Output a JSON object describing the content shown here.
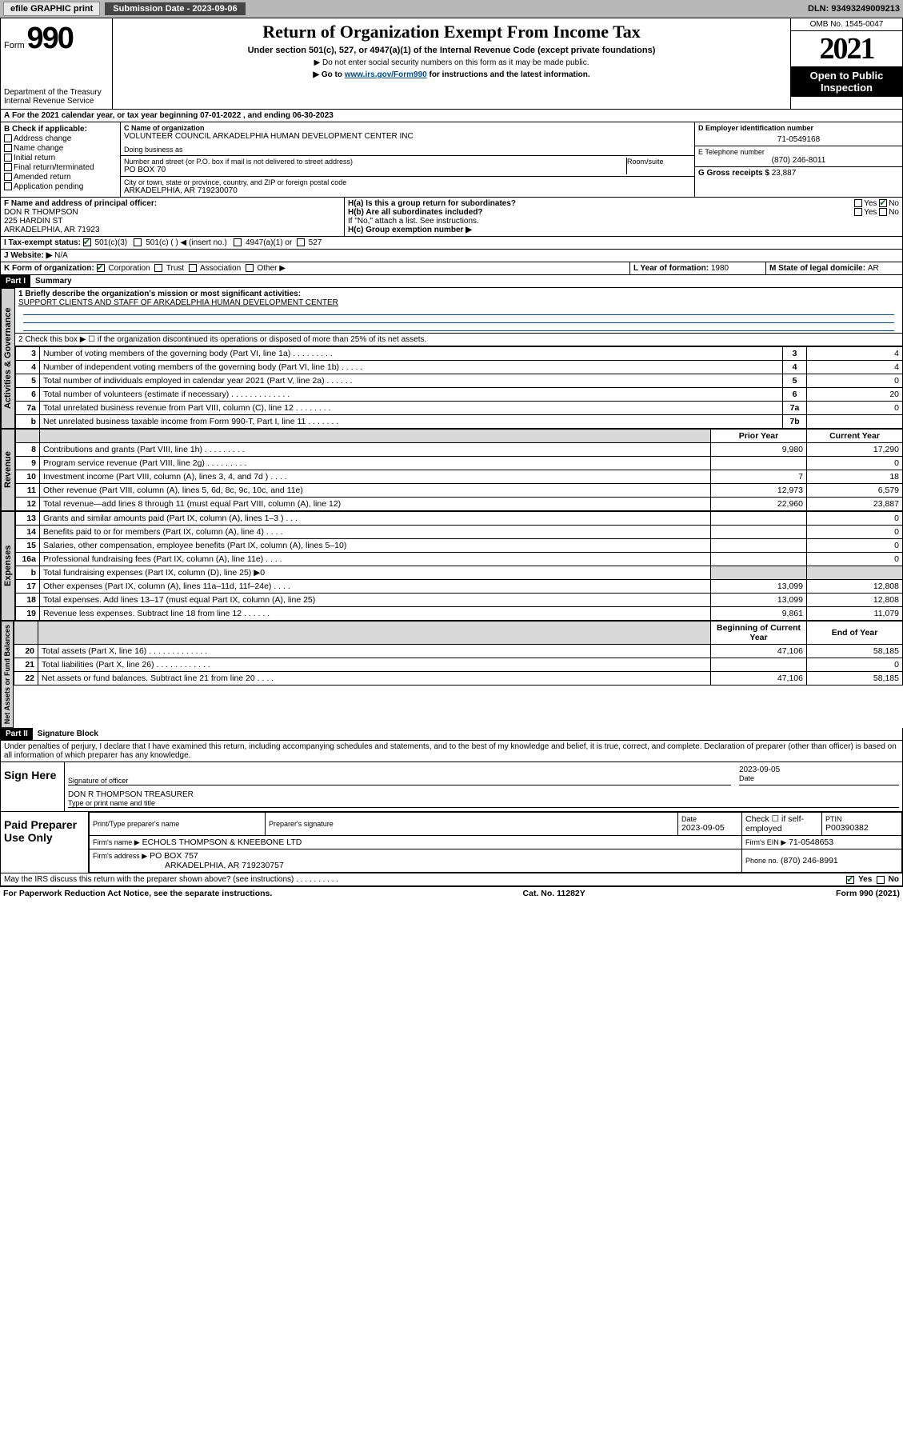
{
  "topbar": {
    "efile": "efile GRAPHIC print",
    "sub_label": "Submission Date - 2023-09-06",
    "dln": "DLN: 93493249009213"
  },
  "header": {
    "form_label": "Form",
    "form_no": "990",
    "title": "Return of Organization Exempt From Income Tax",
    "subtitle": "Under section 501(c), 527, or 4947(a)(1) of the Internal Revenue Code (except private foundations)",
    "note1": "Do not enter social security numbers on this form as it may be made public.",
    "note2_pre": "Go to ",
    "note2_link": "www.irs.gov/Form990",
    "note2_post": " for instructions and the latest information.",
    "dept": "Department of the Treasury\nInternal Revenue Service",
    "omb": "OMB No. 1545-0047",
    "year": "2021",
    "open": "Open to Public Inspection"
  },
  "period": {
    "text_a": "For the 2021 calendar year, or tax year beginning ",
    "begin": "07-01-2022",
    "text_b": " , and ending ",
    "end": "06-30-2023"
  },
  "checks": {
    "label": "B Check if applicable:",
    "items": [
      "Address change",
      "Name change",
      "Initial return",
      "Final return/terminated",
      "Amended return",
      "Application pending"
    ]
  },
  "org": {
    "c_label": "C Name of organization",
    "name": "VOLUNTEER COUNCIL ARKADELPHIA HUMAN DEVELOPMENT CENTER INC",
    "dba_label": "Doing business as",
    "addr_label": "Number and street (or P.O. box if mail is not delivered to street address)",
    "room_label": "Room/suite",
    "addr": "PO BOX 70",
    "city_label": "City or town, state or province, country, and ZIP or foreign postal code",
    "city": "ARKADELPHIA, AR  719230070"
  },
  "right": {
    "d_label": "D Employer identification number",
    "ein": "71-0549168",
    "e_label": "E Telephone number",
    "phone": "(870) 246-8011",
    "g_label": "G Gross receipts $",
    "gross": "23,887"
  },
  "f_block": {
    "label": "F Name and address of principal officer:",
    "name": "DON R THOMPSON",
    "addr1": "225 HARDIN ST",
    "addr2": "ARKADELPHIA, AR  71923"
  },
  "h_block": {
    "ha": "H(a)  Is this a group return for subordinates?",
    "hb": "H(b)  Are all subordinates included?",
    "hb_note": "If \"No,\" attach a list. See instructions.",
    "hc": "H(c)  Group exemption number ▶",
    "yes": "Yes",
    "no": "No"
  },
  "i_block": {
    "label": "I      Tax-exempt status:",
    "o1": "501(c)(3)",
    "o2": "501(c) (   ) ◀ (insert no.)",
    "o3": "4947(a)(1) or",
    "o4": "527"
  },
  "j_block": {
    "label": "J   Website: ▶",
    "val": "N/A"
  },
  "k_block": {
    "label": "K Form of organization:",
    "opts": [
      "Corporation",
      "Trust",
      "Association",
      "Other ▶"
    ],
    "l_label": "L Year of formation: ",
    "l_val": "1980",
    "m_label": "M State of legal domicile: ",
    "m_val": "AR"
  },
  "part1": {
    "hdr": "Part I",
    "title": "Summary",
    "q1_label": "1   Briefly describe the organization's mission or most significant activities:",
    "q1_val": "SUPPORT CLIENTS AND STAFF OF ARKADELPHIA HUMAN DEVELOPMENT CENTER",
    "q2": "2   Check this box ▶ ☐  if the organization discontinued its operations or disposed of more than 25% of its net assets.",
    "vtab_gov": "Activities & Governance",
    "vtab_rev": "Revenue",
    "vtab_exp": "Expenses",
    "vtab_net": "Net Assets or Fund Balances",
    "col_prior": "Prior Year",
    "col_curr": "Current Year",
    "col_beg": "Beginning of Current Year",
    "col_end": "End of Year"
  },
  "gov_rows": [
    {
      "n": "3",
      "d": "Number of voting members of the governing body (Part VI, line 1a)   .    .    .    .    .    .    .    .    .",
      "lab": "3",
      "v": "4"
    },
    {
      "n": "4",
      "d": "Number of independent voting members of the governing body (Part VI, line 1b)  .    .    .    .    .",
      "lab": "4",
      "v": "4"
    },
    {
      "n": "5",
      "d": "Total number of individuals employed in calendar year 2021 (Part V, line 2a)   .    .    .    .    .    .",
      "lab": "5",
      "v": "0"
    },
    {
      "n": "6",
      "d": "Total number of volunteers (estimate if necessary)   .    .    .    .    .    .    .    .    .    .    .    .    .",
      "lab": "6",
      "v": "20"
    },
    {
      "n": "7a",
      "d": "Total unrelated business revenue from Part VIII, column (C), line 12   .    .    .    .    .    .    .    .",
      "lab": "7a",
      "v": "0"
    },
    {
      "n": "b",
      "d": "Net unrelated business taxable income from Form 990-T, Part I, line 11   .    .    .    .    .    .    .",
      "lab": "7b",
      "v": ""
    }
  ],
  "rev_rows": [
    {
      "n": "8",
      "d": "Contributions and grants (Part VIII, line 1h)   .    .    .    .    .    .    .    .    .",
      "p": "9,980",
      "c": "17,290"
    },
    {
      "n": "9",
      "d": "Program service revenue (Part VIII, line 2g)   .    .    .    .    .    .    .    .    .",
      "p": "",
      "c": "0"
    },
    {
      "n": "10",
      "d": "Investment income (Part VIII, column (A), lines 3, 4, and 7d )   .    .    .    .",
      "p": "7",
      "c": "18"
    },
    {
      "n": "11",
      "d": "Other revenue (Part VIII, column (A), lines 5, 6d, 8c, 9c, 10c, and 11e)",
      "p": "12,973",
      "c": "6,579"
    },
    {
      "n": "12",
      "d": "Total revenue—add lines 8 through 11 (must equal Part VIII, column (A), line 12)",
      "p": "22,960",
      "c": "23,887"
    }
  ],
  "exp_rows": [
    {
      "n": "13",
      "d": "Grants and similar amounts paid (Part IX, column (A), lines 1–3 )   .    .    .",
      "p": "",
      "c": "0"
    },
    {
      "n": "14",
      "d": "Benefits paid to or for members (Part IX, column (A), line 4)   .    .    .    .",
      "p": "",
      "c": "0"
    },
    {
      "n": "15",
      "d": "Salaries, other compensation, employee benefits (Part IX, column (A), lines 5–10)",
      "p": "",
      "c": "0"
    },
    {
      "n": "16a",
      "d": "Professional fundraising fees (Part IX, column (A), line 11e)   .    .    .    .",
      "p": "",
      "c": "0"
    },
    {
      "n": "b",
      "d": "Total fundraising expenses (Part IX, column (D), line 25) ▶0",
      "p": "—shade—",
      "c": "—shade—"
    },
    {
      "n": "17",
      "d": "Other expenses (Part IX, column (A), lines 11a–11d, 11f–24e)   .    .    .    .",
      "p": "13,099",
      "c": "12,808"
    },
    {
      "n": "18",
      "d": "Total expenses. Add lines 13–17 (must equal Part IX, column (A), line 25)",
      "p": "13,099",
      "c": "12,808"
    },
    {
      "n": "19",
      "d": "Revenue less expenses. Subtract line 18 from line 12   .    .    .    .    .    .",
      "p": "9,861",
      "c": "11,079"
    }
  ],
  "net_rows": [
    {
      "n": "20",
      "d": "Total assets (Part X, line 16)   .    .    .    .    .    .    .    .    .    .    .    .    .",
      "p": "47,106",
      "c": "58,185"
    },
    {
      "n": "21",
      "d": "Total liabilities (Part X, line 26)   .    .    .    .    .    .    .    .    .    .    .    .",
      "p": "",
      "c": "0"
    },
    {
      "n": "22",
      "d": "Net assets or fund balances. Subtract line 21 from line 20   .    .    .    .",
      "p": "47,106",
      "c": "58,185"
    }
  ],
  "part2": {
    "hdr": "Part II",
    "title": "Signature Block",
    "decl": "Under penalties of perjury, I declare that I have examined this return, including accompanying schedules and statements, and to the best of my knowledge and belief, it is true, correct, and complete. Declaration of preparer (other than officer) is based on all information of which preparer has any knowledge."
  },
  "sign": {
    "here": "Sign Here",
    "sig_of": "Signature of officer",
    "date": "Date",
    "date_v": "2023-09-05",
    "name": "DON R THOMPSON  TREASURER",
    "type": "Type or print name and title"
  },
  "paid": {
    "label": "Paid Preparer Use Only",
    "c1": "Print/Type preparer's name",
    "c2": "Preparer's signature",
    "c3": "Date",
    "c3v": "2023-09-05",
    "c4": "Check ☐ if self-employed",
    "c5": "PTIN",
    "c5v": "P00390382",
    "firm_name_l": "Firm's name     ▶",
    "firm_name": "ECHOLS THOMPSON & KNEEBONE LTD",
    "firm_ein_l": "Firm's EIN ▶",
    "firm_ein": "71-0548653",
    "firm_addr_l": "Firm's address ▶",
    "firm_addr": "PO BOX 757",
    "firm_city": "ARKADELPHIA, AR  719230757",
    "phone_l": "Phone no.",
    "phone": "(870) 246-8991"
  },
  "discuss": {
    "q": "May the IRS discuss this return with the preparer shown above? (see instructions)   .    .    .    .    .    .    .    .    .    .",
    "yes": "Yes",
    "no": "No"
  },
  "footer": {
    "left": "For Paperwork Reduction Act Notice, see the separate instructions.",
    "mid": "Cat. No. 11282Y",
    "right": "Form 990 (2021)"
  },
  "colors": {
    "link": "#004b8d",
    "check": "#0b6e1f",
    "shade": "#d8d8d8"
  }
}
